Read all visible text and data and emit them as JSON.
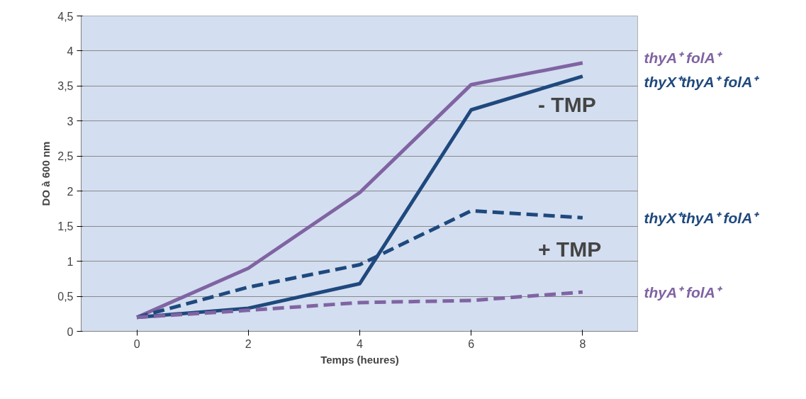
{
  "chart_data": {
    "type": "line",
    "xlabel": "Temps (heures)",
    "ylabel": "DO à 600 nm",
    "x": [
      0,
      2,
      4,
      6,
      8
    ],
    "series": [
      {
        "name": "thyA⁺ folA⁺",
        "color": "#8064a2",
        "line_style": "solid",
        "values": [
          0.2,
          0.9,
          1.98,
          3.52,
          3.83
        ]
      },
      {
        "name": "thyX⁺thyA⁺ folA⁺",
        "color": "#1f497d",
        "line_style": "solid",
        "values": [
          0.2,
          0.33,
          0.68,
          3.16,
          3.64
        ]
      },
      {
        "name": "thyX⁺thyA⁺ folA⁺",
        "color": "#1f497d",
        "line_style": "dashed",
        "values": [
          0.2,
          0.63,
          0.95,
          1.72,
          1.62
        ]
      },
      {
        "name": "thyA⁺ folA⁺",
        "color": "#8064a2",
        "line_style": "dashed",
        "values": [
          0.2,
          0.3,
          0.41,
          0.44,
          0.56
        ]
      }
    ],
    "annotations": [
      "- TMP",
      "+ TMP"
    ],
    "xlim": [
      -1,
      9
    ],
    "xticks": [
      0,
      2,
      4,
      6,
      8
    ],
    "ylim": [
      0,
      4.5
    ],
    "yticks": [
      0,
      {
        "value": 0.5,
        "label": "0,5"
      },
      1,
      {
        "value": 1.5,
        "label": "1,5"
      },
      2,
      {
        "value": 2.5,
        "label": "2,5"
      },
      3,
      {
        "value": 3.5,
        "label": "3,5"
      },
      4,
      {
        "value": 4.5,
        "label": "4,5"
      }
    ],
    "grid": "y",
    "marker": "none"
  }
}
